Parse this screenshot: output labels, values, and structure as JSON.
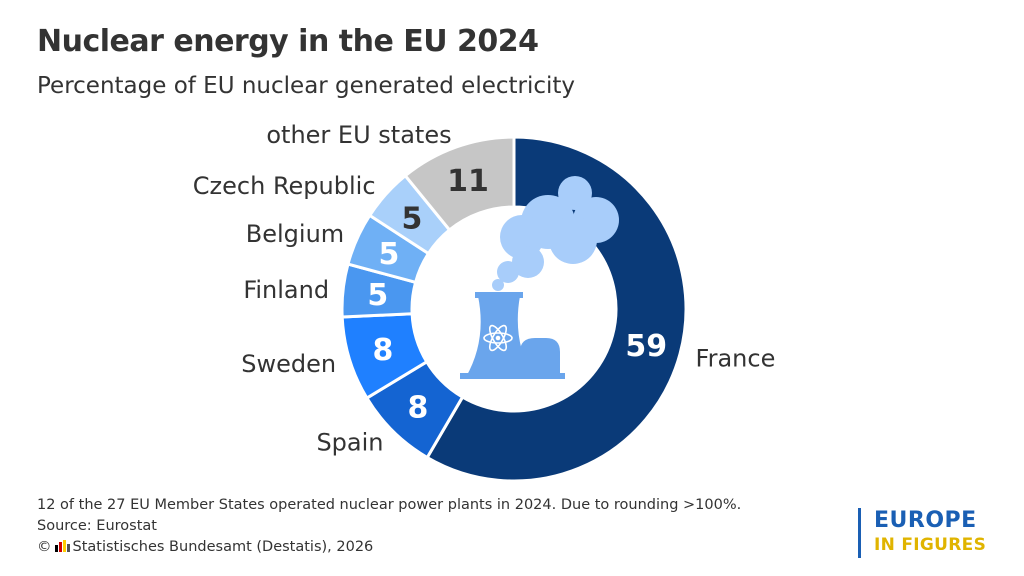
{
  "title": "Nuclear energy in the EU 2024",
  "subtitle": "Percentage of EU nuclear generated electricity",
  "chart_data": {
    "type": "pie",
    "style": "donut",
    "unit": "percent",
    "title": "Nuclear energy in the EU 2024",
    "subtitle": "Percentage of EU nuclear generated electricity",
    "categories": [
      "France",
      "Spain",
      "Sweden",
      "Finland",
      "Belgium",
      "Czech Republic",
      "other EU states"
    ],
    "values": [
      59,
      8,
      8,
      5,
      5,
      5,
      11
    ],
    "colors": [
      "#0a3a78",
      "#1464d2",
      "#1f80ff",
      "#4a97f0",
      "#6fb0f5",
      "#a9d0fa",
      "#c6c6c6"
    ],
    "label_colors": [
      "#ffffff",
      "#ffffff",
      "#ffffff",
      "#ffffff",
      "#ffffff",
      "#333333",
      "#333333"
    ]
  },
  "footer": {
    "note": "12 of the 27 EU Member States operated nuclear power plants in 2024. Due to rounding >100%.",
    "source": "Source: Eurostat",
    "copyright_symbol": "©",
    "copyright": "Statistisches Bundesamt (Destatis), 2026"
  },
  "brand": {
    "top": "EUROPE",
    "bottom": "IN FIGURES"
  },
  "icon": "nuclear-power-plant-icon"
}
